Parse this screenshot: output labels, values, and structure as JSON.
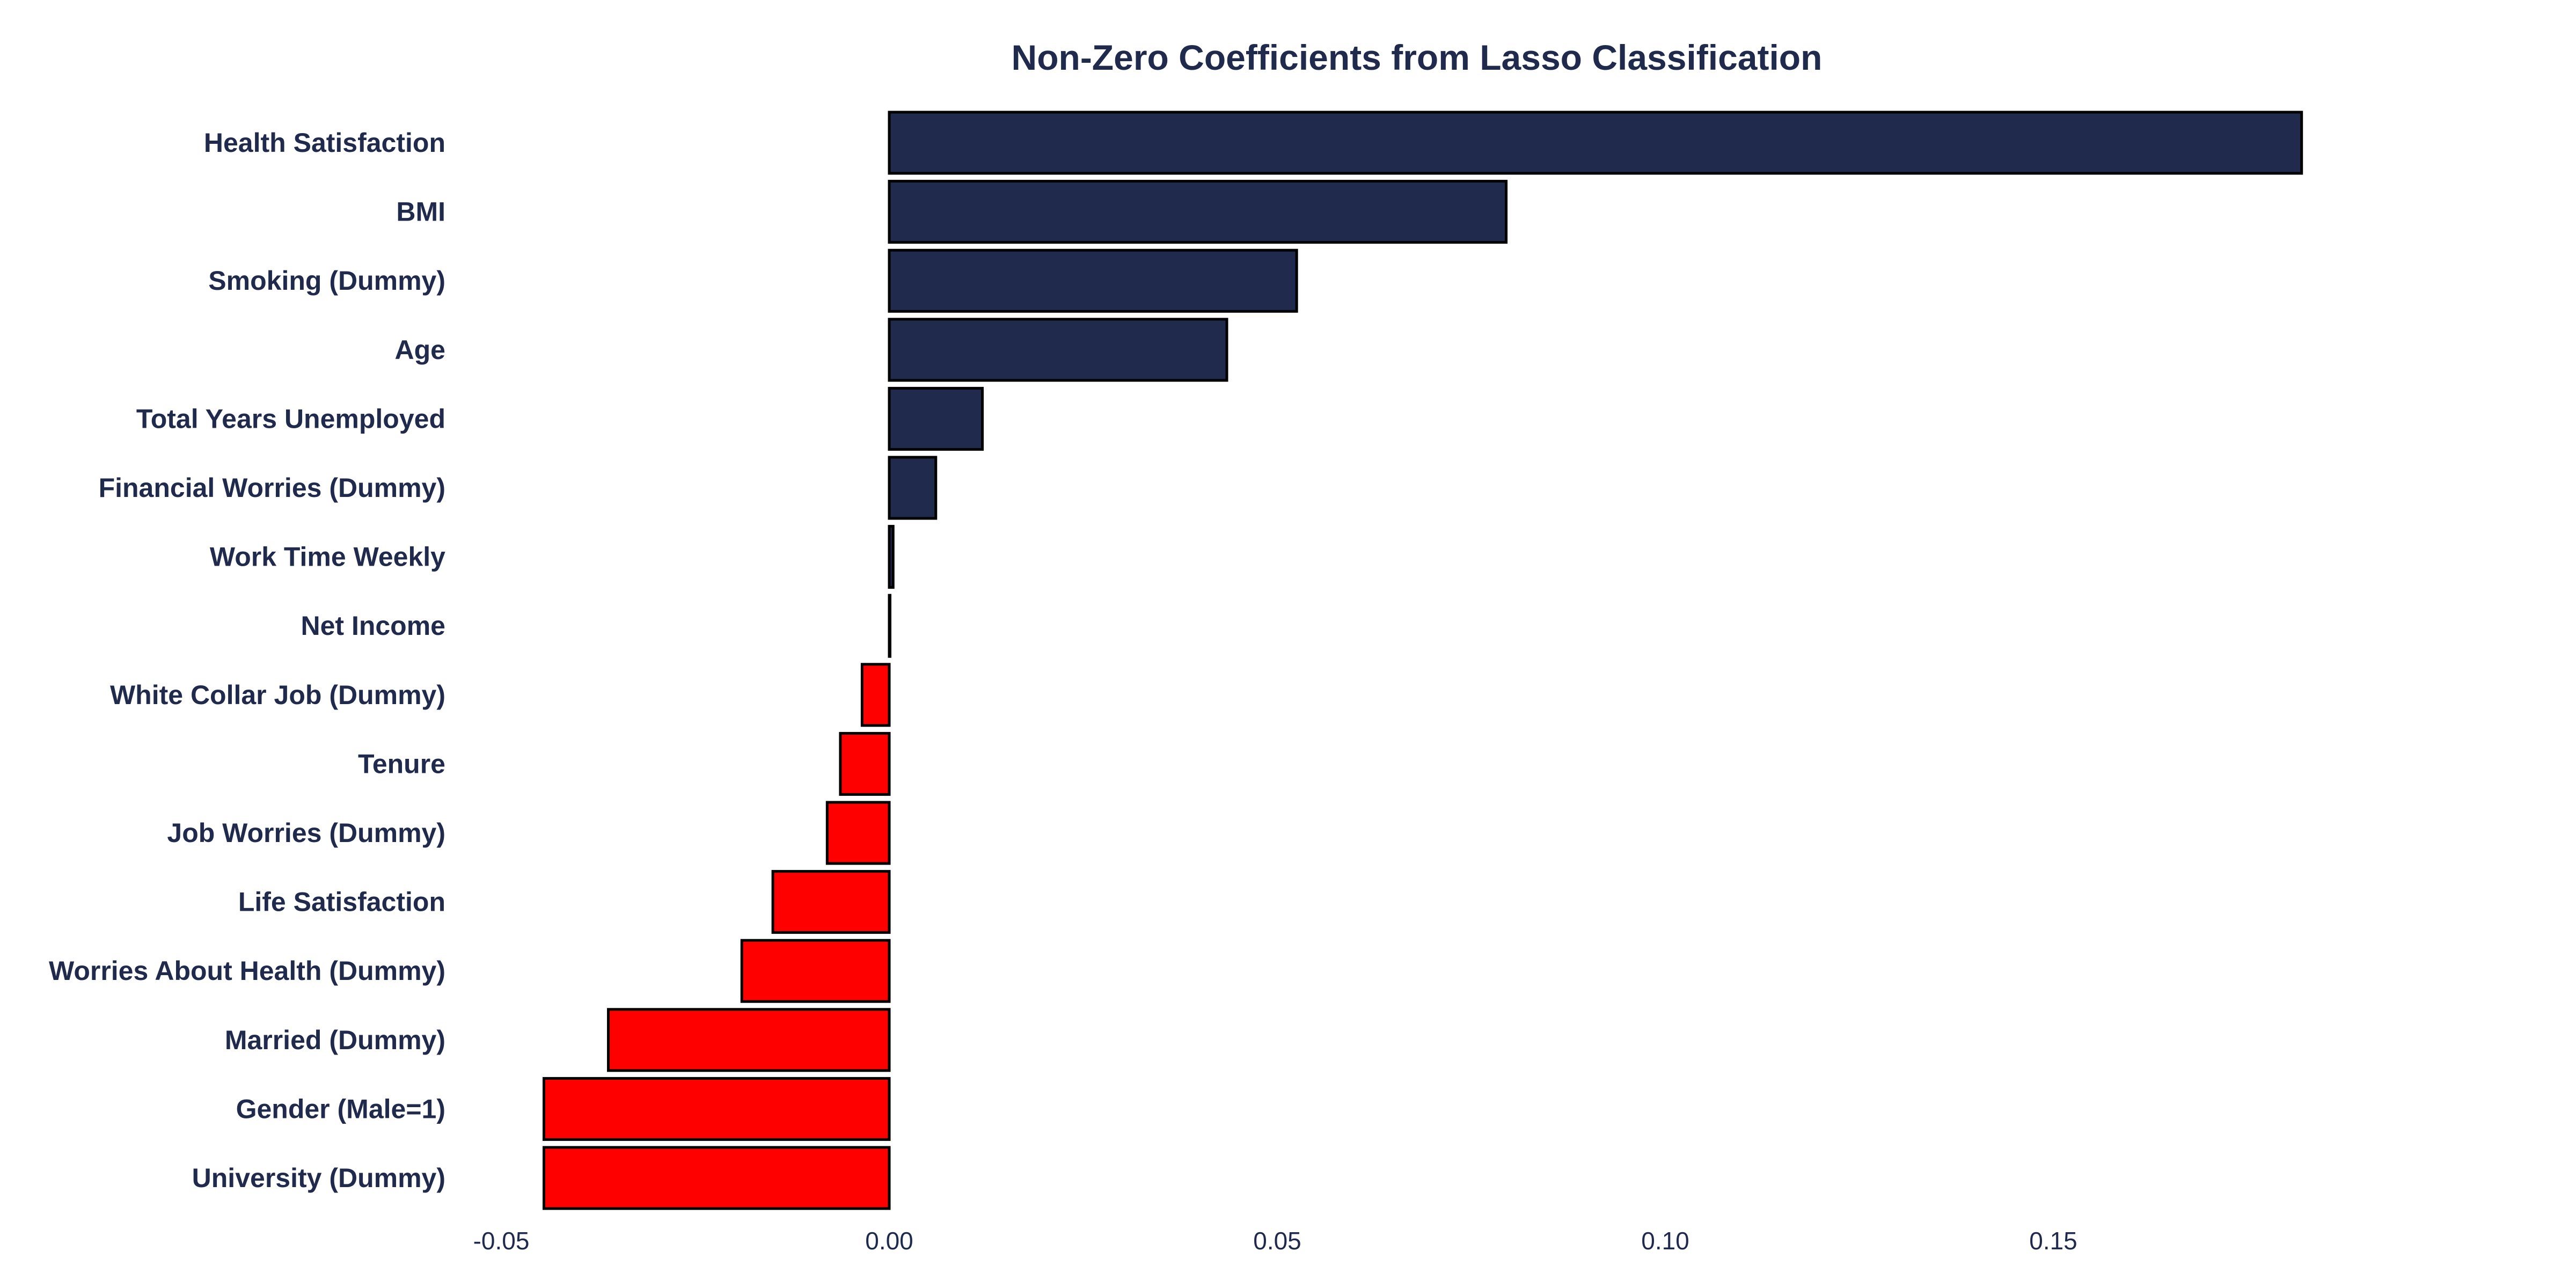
{
  "chart_data": {
    "type": "bar",
    "orientation": "horizontal",
    "title": "Non-Zero Coefficients from Lasso Classification",
    "xlabel": "",
    "ylabel": "",
    "xlim": [
      -0.05,
      0.2
    ],
    "xticks": [
      -0.05,
      0.0,
      0.05,
      0.1,
      0.15
    ],
    "xtick_labels": [
      "-0.05",
      "0.00",
      "0.05",
      "0.10",
      "0.15"
    ],
    "grid": false,
    "legend": "none",
    "categories": [
      "Health Satisfaction",
      "BMI",
      "Smoking (Dummy)",
      "Age",
      "Total Years Unemployed",
      "Financial Worries (Dummy)",
      "Work Time Weekly",
      "Net Income",
      "White Collar Job (Dummy)",
      "Tenure",
      "Job Worries (Dummy)",
      "Life Satisfaction",
      "Worries About Health (Dummy)",
      "Married (Dummy)",
      "Gender (Male=1)",
      "University (Dummy)"
    ],
    "values": [
      0.182,
      0.0795,
      0.0525,
      0.0435,
      0.012,
      0.006,
      0.0005,
      0.0001,
      -0.0035,
      -0.0063,
      -0.008,
      -0.015,
      -0.019,
      -0.0362,
      -0.0445,
      -0.0445
    ],
    "colors": {
      "positive": "#1f2a4d",
      "negative": "#ff0000",
      "edge": "#000000",
      "text": "#1f2a4d"
    }
  }
}
